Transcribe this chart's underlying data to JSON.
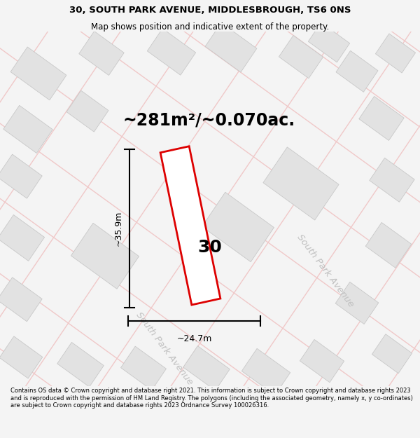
{
  "title_line1": "30, SOUTH PARK AVENUE, MIDDLESBROUGH, TS6 0NS",
  "title_line2": "Map shows position and indicative extent of the property.",
  "area_text": "~281m²/~0.070ac.",
  "label_number": "30",
  "dim_width": "~24.7m",
  "dim_height": "~35.9m",
  "street_label1": "South Park Avenue",
  "street_label2": "South Park Avenue",
  "footer_text": "Contains OS data © Crown copyright and database right 2021. This information is subject to Crown copyright and database rights 2023 and is reproduced with the permission of HM Land Registry. The polygons (including the associated geometry, namely x, y co-ordinates) are subject to Crown copyright and database rights 2023 Ordnance Survey 100026316.",
  "bg_color": "#f4f4f4",
  "map_bg": "#ffffff",
  "plot_fill": "#ffffff",
  "plot_edge": "#dd0000",
  "building_fill": "#e2e2e2",
  "building_edge": "#c8c8c8",
  "road_line_color": "#f0c8c8",
  "street_label_color": "#c0c0c0",
  "title_fontsize": 9.5,
  "subtitle_fontsize": 8.5,
  "area_fontsize": 17,
  "label_fontsize": 18,
  "dim_fontsize": 9,
  "footer_fontsize": 6.0,
  "street_fontsize": 9.5
}
